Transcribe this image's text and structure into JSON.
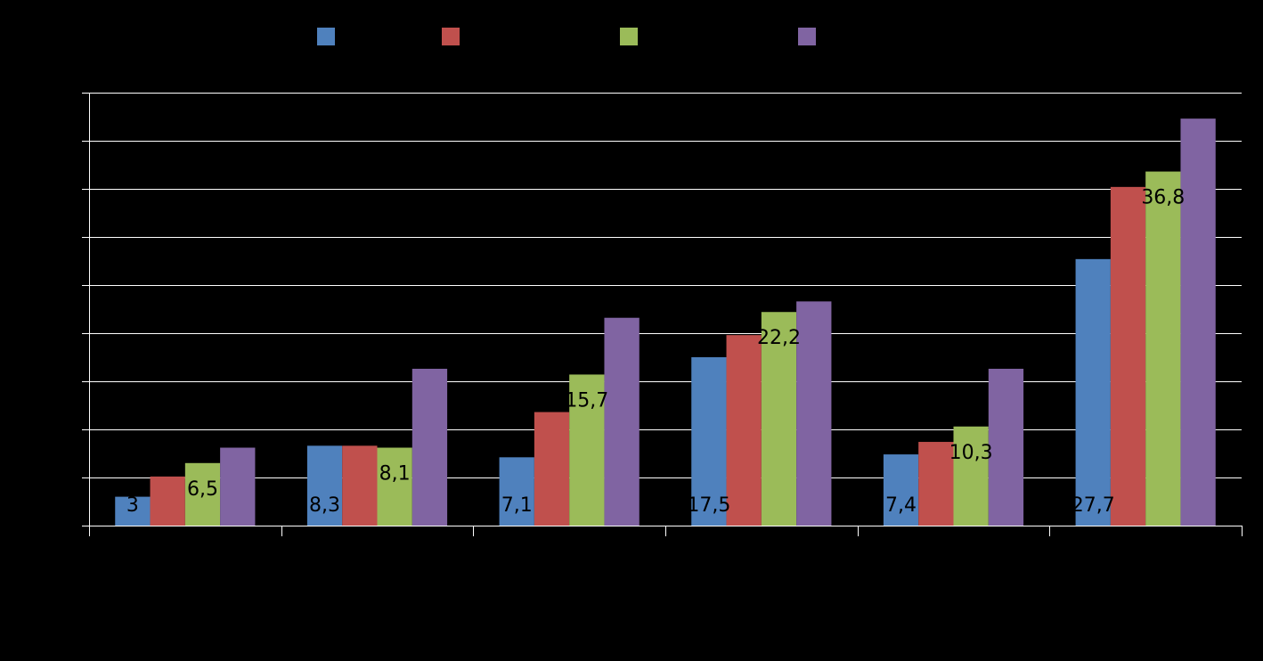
{
  "chart_data": {
    "type": "bar",
    "categories": [
      "",
      "",
      "",
      "",
      "",
      ""
    ],
    "series": [
      {
        "color": "#4F81BD",
        "values": [
          3,
          8.3,
          7.1,
          17.5,
          7.4,
          27.7
        ]
      },
      {
        "color": "#C0504D",
        "values": [
          5.1,
          8.3,
          11.8,
          19.8,
          8.7,
          35.2
        ]
      },
      {
        "color": "#9BBB59",
        "values": [
          6.5,
          8.1,
          15.7,
          22.2,
          10.3,
          36.8
        ]
      },
      {
        "color": "#8064A2",
        "values": [
          8.1,
          16.3,
          21.6,
          23.3,
          16.3,
          42.3
        ]
      }
    ],
    "data_labels": [
      [
        "3",
        "8,3",
        "7,1",
        "17,5",
        "7,4",
        "27,7"
      ],
      [
        "",
        "",
        "",
        "",
        "",
        ""
      ],
      [
        "6,5",
        "8,1",
        "15,7",
        "22,2",
        "10,3",
        "36,8"
      ],
      [
        "",
        "",
        "",
        "",
        "",
        ""
      ]
    ],
    "ylim": [
      0,
      45
    ],
    "grid": true,
    "legend_position": "top"
  }
}
